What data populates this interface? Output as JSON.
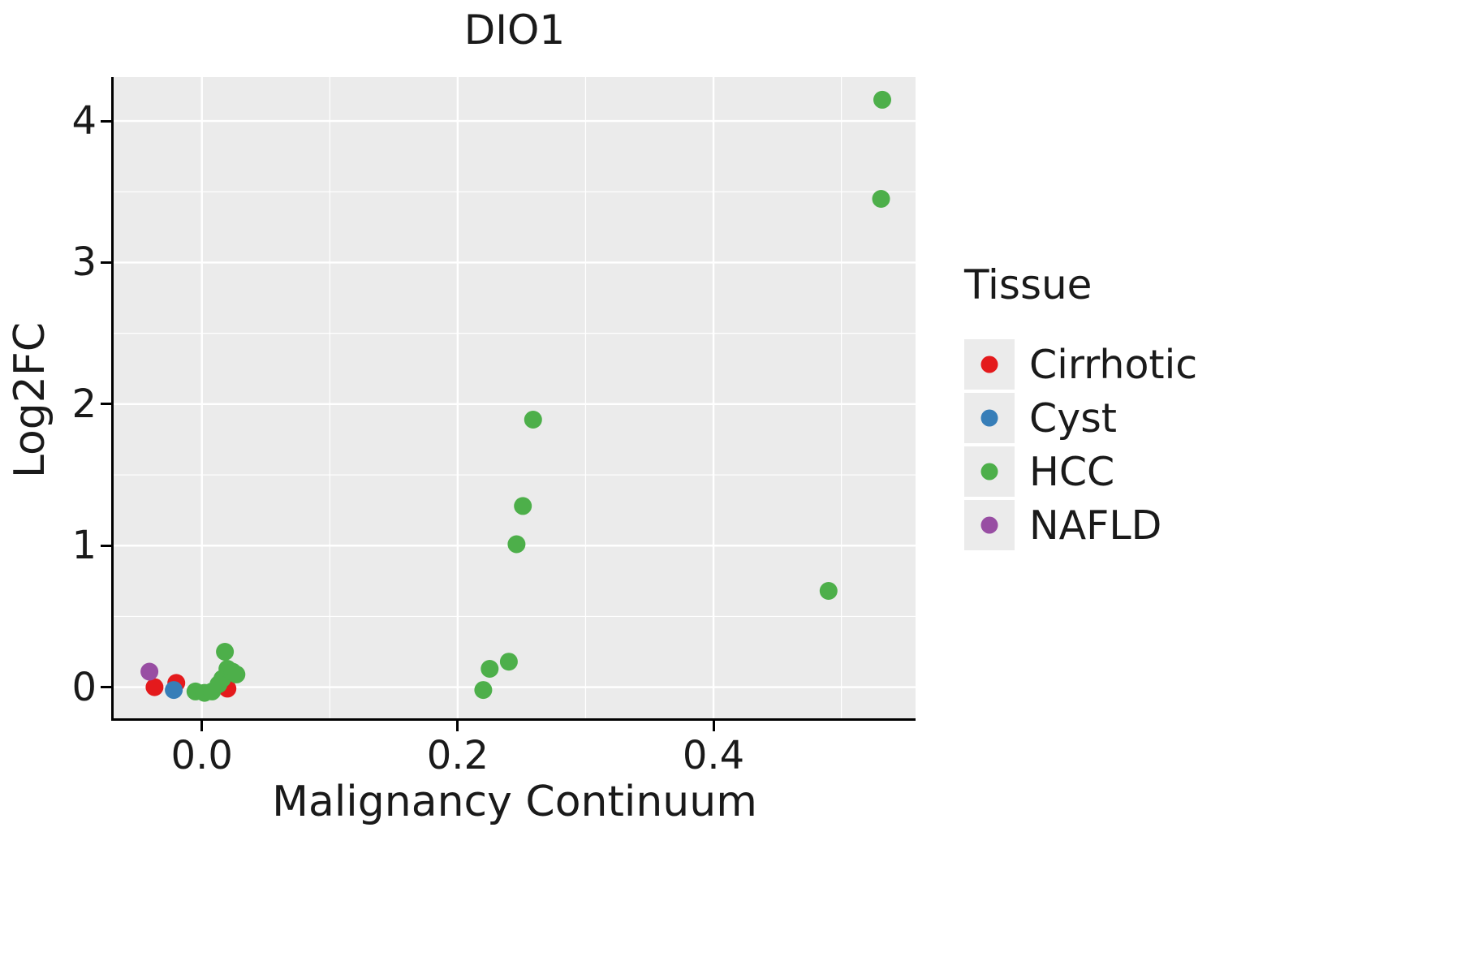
{
  "chart_data": {
    "type": "scatter",
    "title": "DIO1",
    "xlabel": "Malignancy Continuum",
    "ylabel": "Log2FC",
    "xlim": [
      -0.069,
      0.558
    ],
    "ylim": [
      -0.22,
      4.31
    ],
    "x_ticks": [
      0.0,
      0.2,
      0.4
    ],
    "x_tick_labels": [
      "0.0",
      "0.2",
      "0.4"
    ],
    "x_minor_ticks": [
      0.1,
      0.3,
      0.5
    ],
    "y_ticks": [
      0,
      1,
      2,
      3,
      4
    ],
    "y_tick_labels": [
      "0",
      "1",
      "2",
      "3",
      "4"
    ],
    "y_minor_ticks": [
      0.5,
      1.5,
      2.5,
      3.5
    ],
    "grid": "on",
    "panel_background": "#EBEBEB",
    "gridline_color": "#FFFFFF",
    "legend_title": "Tissue",
    "legend_position": "right",
    "series": [
      {
        "name": "Cirrhotic",
        "color": "#E41A1C",
        "points": [
          [
            -0.037,
            0.0
          ],
          [
            -0.02,
            0.03
          ],
          [
            0.02,
            -0.01
          ]
        ]
      },
      {
        "name": "Cyst",
        "color": "#377EB8",
        "points": [
          [
            -0.022,
            -0.02
          ]
        ]
      },
      {
        "name": "HCC",
        "color": "#4DAF4A",
        "points": [
          [
            -0.005,
            -0.03
          ],
          [
            0.002,
            -0.04
          ],
          [
            0.008,
            -0.03
          ],
          [
            0.013,
            0.02
          ],
          [
            0.016,
            0.06
          ],
          [
            0.018,
            0.25
          ],
          [
            0.02,
            0.13
          ],
          [
            0.024,
            0.11
          ],
          [
            0.027,
            0.09
          ],
          [
            0.22,
            -0.02
          ],
          [
            0.225,
            0.13
          ],
          [
            0.24,
            0.18
          ],
          [
            0.246,
            1.01
          ],
          [
            0.251,
            1.28
          ],
          [
            0.259,
            1.89
          ],
          [
            0.49,
            0.68
          ],
          [
            0.531,
            3.45
          ],
          [
            0.532,
            4.15
          ]
        ]
      },
      {
        "name": "NAFLD",
        "color": "#984EA3",
        "points": [
          [
            -0.041,
            0.11
          ]
        ]
      }
    ]
  }
}
